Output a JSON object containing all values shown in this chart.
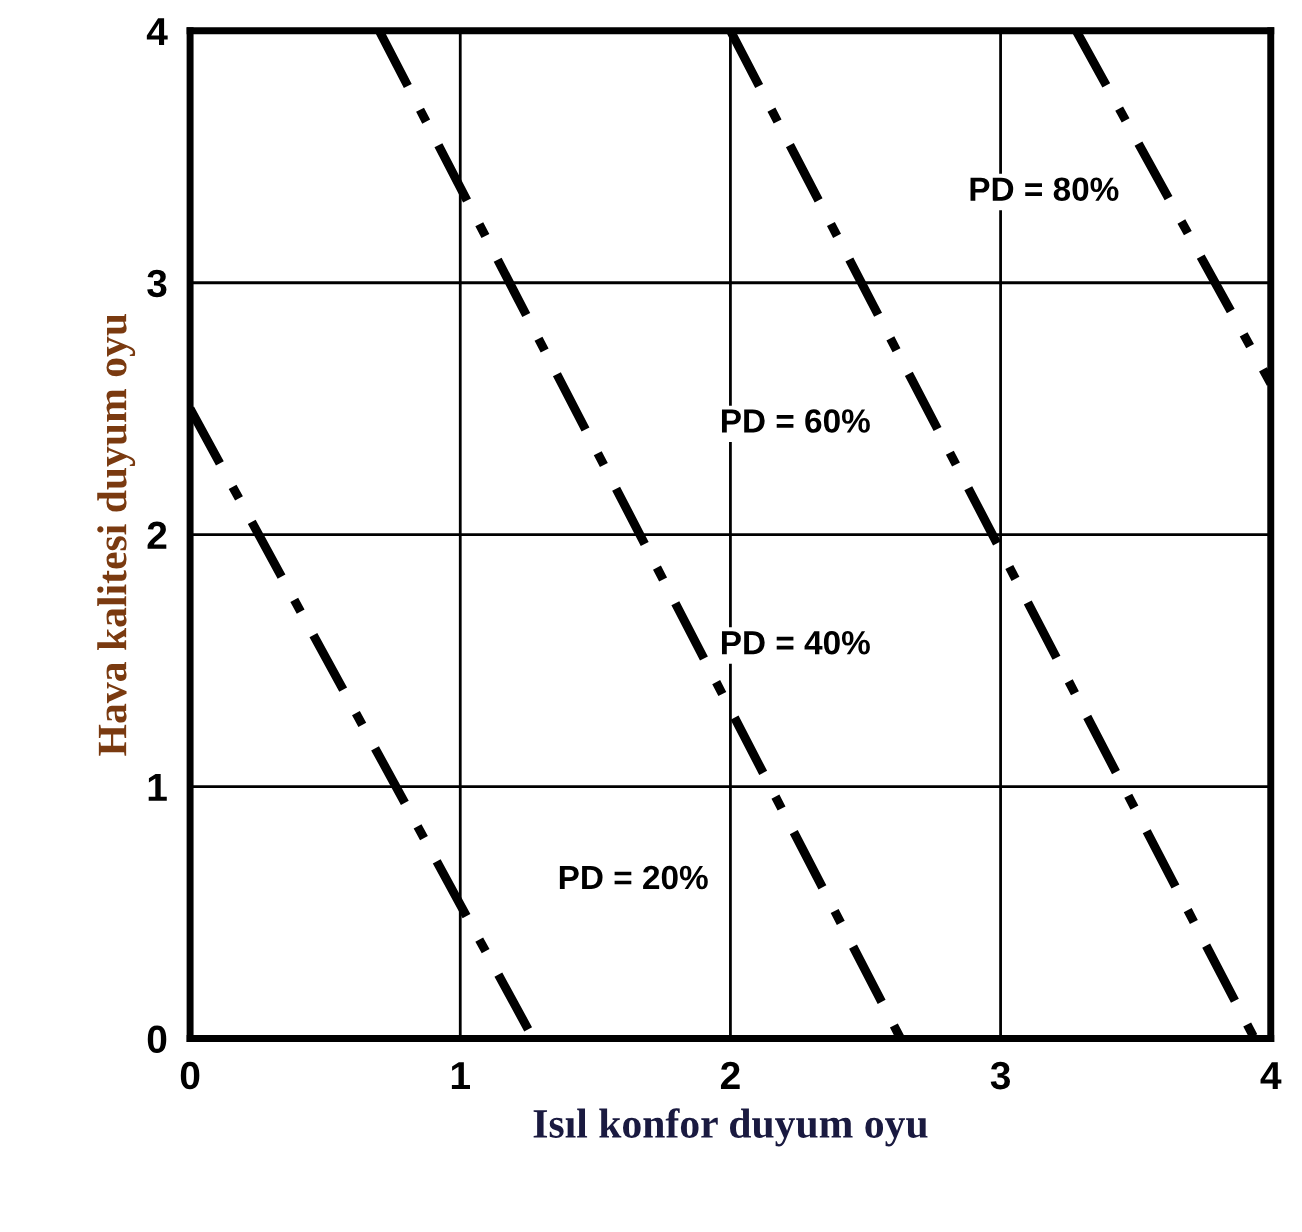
{
  "chart_data": {
    "type": "line",
    "xlabel": "Isıl konfor duyum oyu",
    "ylabel": "Hava kalitesi duyum oyu",
    "xlim": [
      0,
      4
    ],
    "ylim": [
      0,
      4
    ],
    "xticks": [
      0,
      1,
      2,
      3,
      4
    ],
    "yticks": [
      0,
      1,
      2,
      3,
      4
    ],
    "grid": true,
    "line_style": "dashed",
    "marker": "none",
    "series": [
      {
        "color": "#000000",
        "x": [
          0,
          1.27
        ],
        "values": [
          2.5,
          0
        ]
      },
      {
        "color": "#000000",
        "x": [
          0.7,
          2.63
        ],
        "values": [
          4,
          0
        ]
      },
      {
        "color": "#000000",
        "x": [
          2.0,
          3.94
        ],
        "values": [
          4,
          0
        ]
      },
      {
        "color": "#000000",
        "x": [
          3.28,
          4.0
        ],
        "values": [
          4,
          2.6
        ]
      }
    ],
    "annotations": [
      "PD = 20%",
      "PD = 40%",
      "PD = 60%",
      "PD = 80%"
    ]
  }
}
